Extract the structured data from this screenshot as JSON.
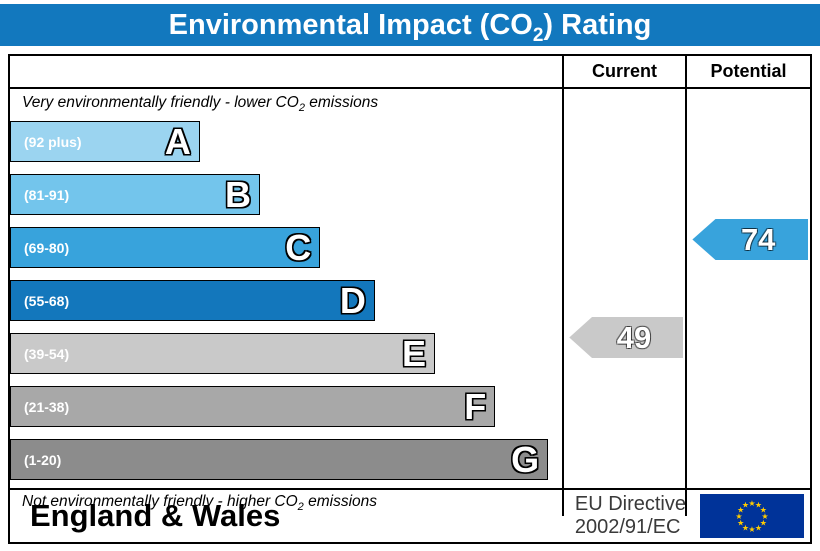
{
  "title": {
    "prefix": "Environmental Impact (CO",
    "sub": "2",
    "suffix": ") Rating"
  },
  "columns": {
    "current": "Current",
    "potential": "Potential"
  },
  "notes": {
    "top": {
      "prefix": "Very environmentally friendly - lower CO",
      "sub": "2",
      "suffix": " emissions"
    },
    "bottom": {
      "prefix": "Not environmentally friendly - higher CO",
      "sub": "2",
      "suffix": " emissions"
    }
  },
  "bands": [
    {
      "letter": "A",
      "range": "(92 plus)",
      "color": "#9bd4f0",
      "width_pct": 34.4
    },
    {
      "letter": "B",
      "range": "(81-91)",
      "color": "#73c5ec",
      "width_pct": 45.3
    },
    {
      "letter": "C",
      "range": "(69-80)",
      "color": "#38a3dc",
      "width_pct": 56.2
    },
    {
      "letter": "D",
      "range": "(55-68)",
      "color": "#1377bc",
      "width_pct": 66.1
    },
    {
      "letter": "E",
      "range": "(39-54)",
      "color": "#c9c9c9",
      "width_pct": 77.0
    },
    {
      "letter": "F",
      "range": "(21-38)",
      "color": "#a8a8a8",
      "width_pct": 87.9
    },
    {
      "letter": "G",
      "range": "(1-20)",
      "color": "#8c8c8c",
      "width_pct": 97.5
    }
  ],
  "current": {
    "value": "49",
    "band": "E"
  },
  "potential": {
    "value": "74",
    "band": "C"
  },
  "footer": {
    "region": "England & Wales",
    "directive_line1": "EU Directive",
    "directive_line2": "2002/91/EC"
  },
  "colors": {
    "title_bg": "#1278be",
    "title_text": "#ffffff",
    "border": "#000000",
    "eu_flag_bg": "#003399",
    "eu_star": "#ffcc00"
  },
  "chart_data": {
    "type": "bar",
    "title": "Environmental Impact (CO2) Rating",
    "categories": [
      "A",
      "B",
      "C",
      "D",
      "E",
      "F",
      "G"
    ],
    "band_ranges": [
      "92 plus",
      "81-91",
      "69-80",
      "55-68",
      "39-54",
      "21-38",
      "1-20"
    ],
    "values": [
      34.4,
      45.3,
      56.2,
      66.1,
      77.0,
      87.9,
      97.5
    ],
    "value_unit": "bar length, % of scale width",
    "current_rating": {
      "value": 49,
      "band": "E"
    },
    "potential_rating": {
      "value": 74,
      "band": "C"
    },
    "top_annotation": "Very environmentally friendly - lower CO2 emissions",
    "bottom_annotation": "Not environmentally friendly - higher CO2 emissions",
    "columns": [
      "Current",
      "Potential"
    ],
    "region": "England & Wales",
    "directive": "EU Directive 2002/91/EC",
    "legend_position": "none",
    "grid": false
  }
}
